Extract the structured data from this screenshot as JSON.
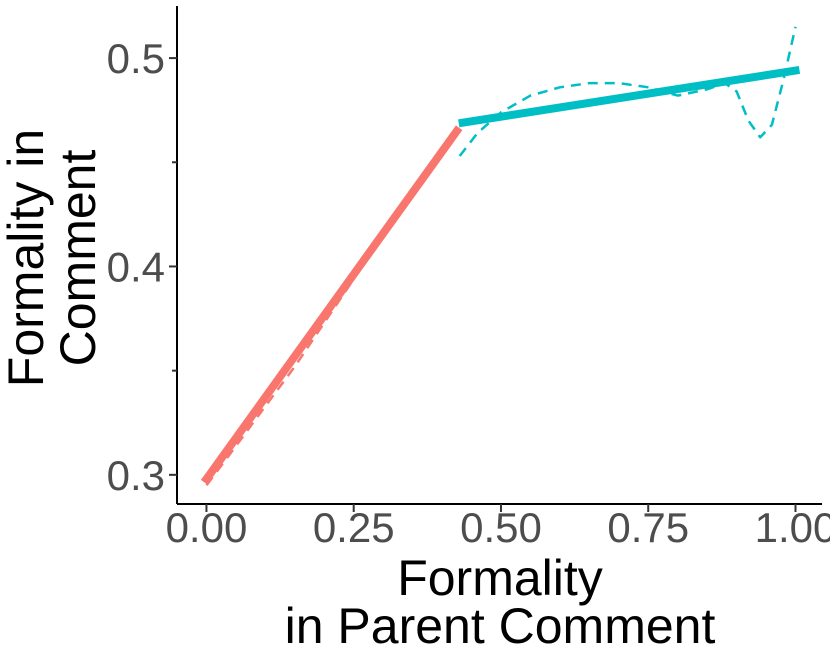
{
  "chart_data": {
    "type": "line",
    "xlabel": [
      "Formality",
      "in Parent Comment"
    ],
    "ylabel": [
      "Formality in",
      "Comment"
    ],
    "xlim": [
      -0.05,
      1.045
    ],
    "ylim": [
      0.286,
      0.525
    ],
    "x_ticks": [
      0.0,
      0.25,
      0.5,
      0.75,
      1.0
    ],
    "x_tick_labels": [
      "0.00",
      "0.25",
      "0.50",
      "0.75",
      "1.00"
    ],
    "y_ticks": [
      0.3,
      0.4,
      0.5
    ],
    "y_tick_labels": [
      "0.3",
      "0.4",
      "0.5"
    ],
    "y_minor_ticks": [
      0.35,
      0.45
    ],
    "grid": false,
    "legend": "none",
    "series": [
      {
        "style": "solid",
        "color": "#F8766D",
        "x": [
          0.0,
          0.425
        ],
        "y": [
          0.298,
          0.465
        ]
      },
      {
        "style": "solid",
        "color": "#00BFC4",
        "x": [
          0.435,
          1.0
        ],
        "y": [
          0.469,
          0.494
        ]
      },
      {
        "style": "dashed",
        "color": "#F8766D",
        "x": [
          0.0,
          0.04,
          0.1,
          0.15,
          0.2,
          0.25,
          0.3,
          0.35,
          0.4,
          0.425
        ],
        "y": [
          0.295,
          0.31,
          0.333,
          0.352,
          0.373,
          0.394,
          0.415,
          0.436,
          0.456,
          0.464
        ]
      },
      {
        "style": "dashed",
        "color": "#00BFC4",
        "x": [
          0.43,
          0.46,
          0.5,
          0.55,
          0.6,
          0.65,
          0.7,
          0.75,
          0.8,
          0.85,
          0.88,
          0.9,
          0.92,
          0.94,
          0.96,
          0.98,
          1.0
        ],
        "y": [
          0.453,
          0.464,
          0.474,
          0.482,
          0.486,
          0.488,
          0.488,
          0.486,
          0.482,
          0.485,
          0.488,
          0.484,
          0.47,
          0.462,
          0.468,
          0.49,
          0.515
        ]
      }
    ]
  }
}
